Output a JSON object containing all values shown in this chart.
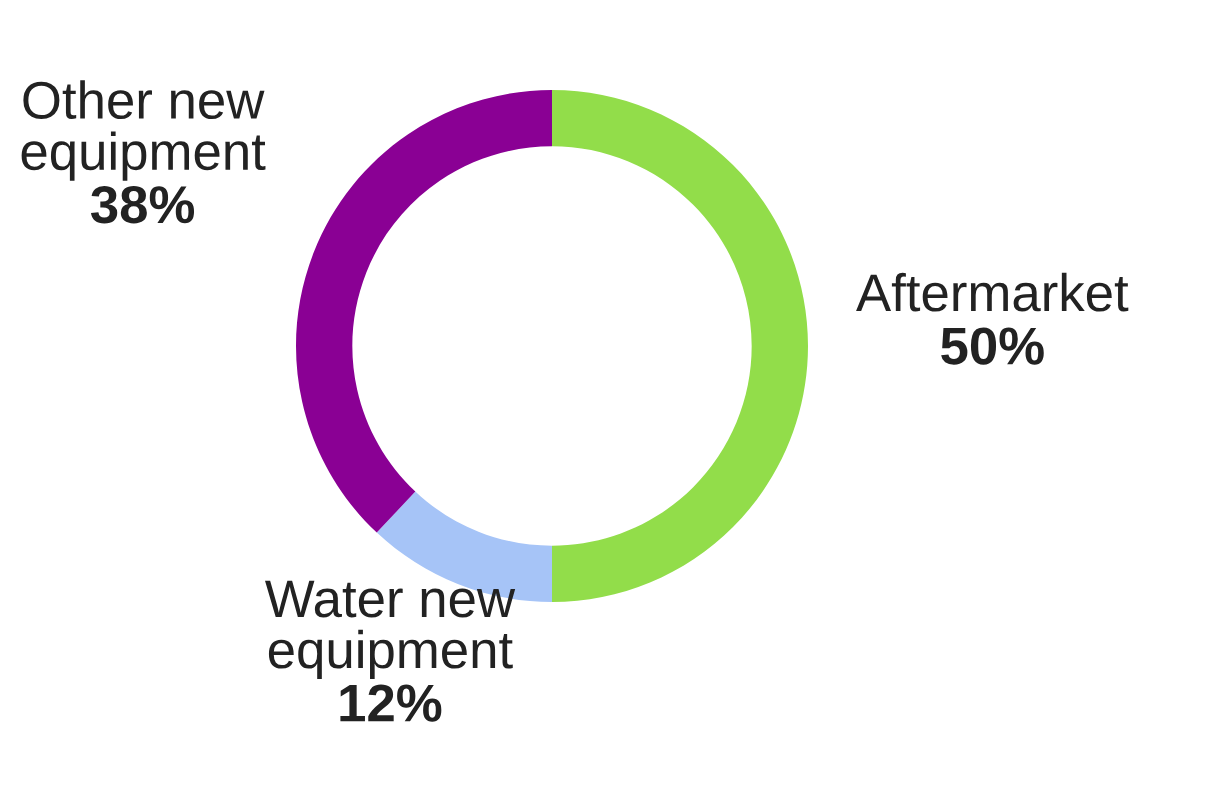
{
  "chart_data": {
    "type": "donut",
    "categories": [
      "Aftermarket",
      "Water new equipment",
      "Other new equipment"
    ],
    "values": [
      50,
      12,
      38
    ],
    "colors": [
      "#92dd4a",
      "#a6c4f7",
      "#8a0094"
    ],
    "value_labels": [
      "50%",
      "12%",
      "38%"
    ],
    "legend": false
  }
}
